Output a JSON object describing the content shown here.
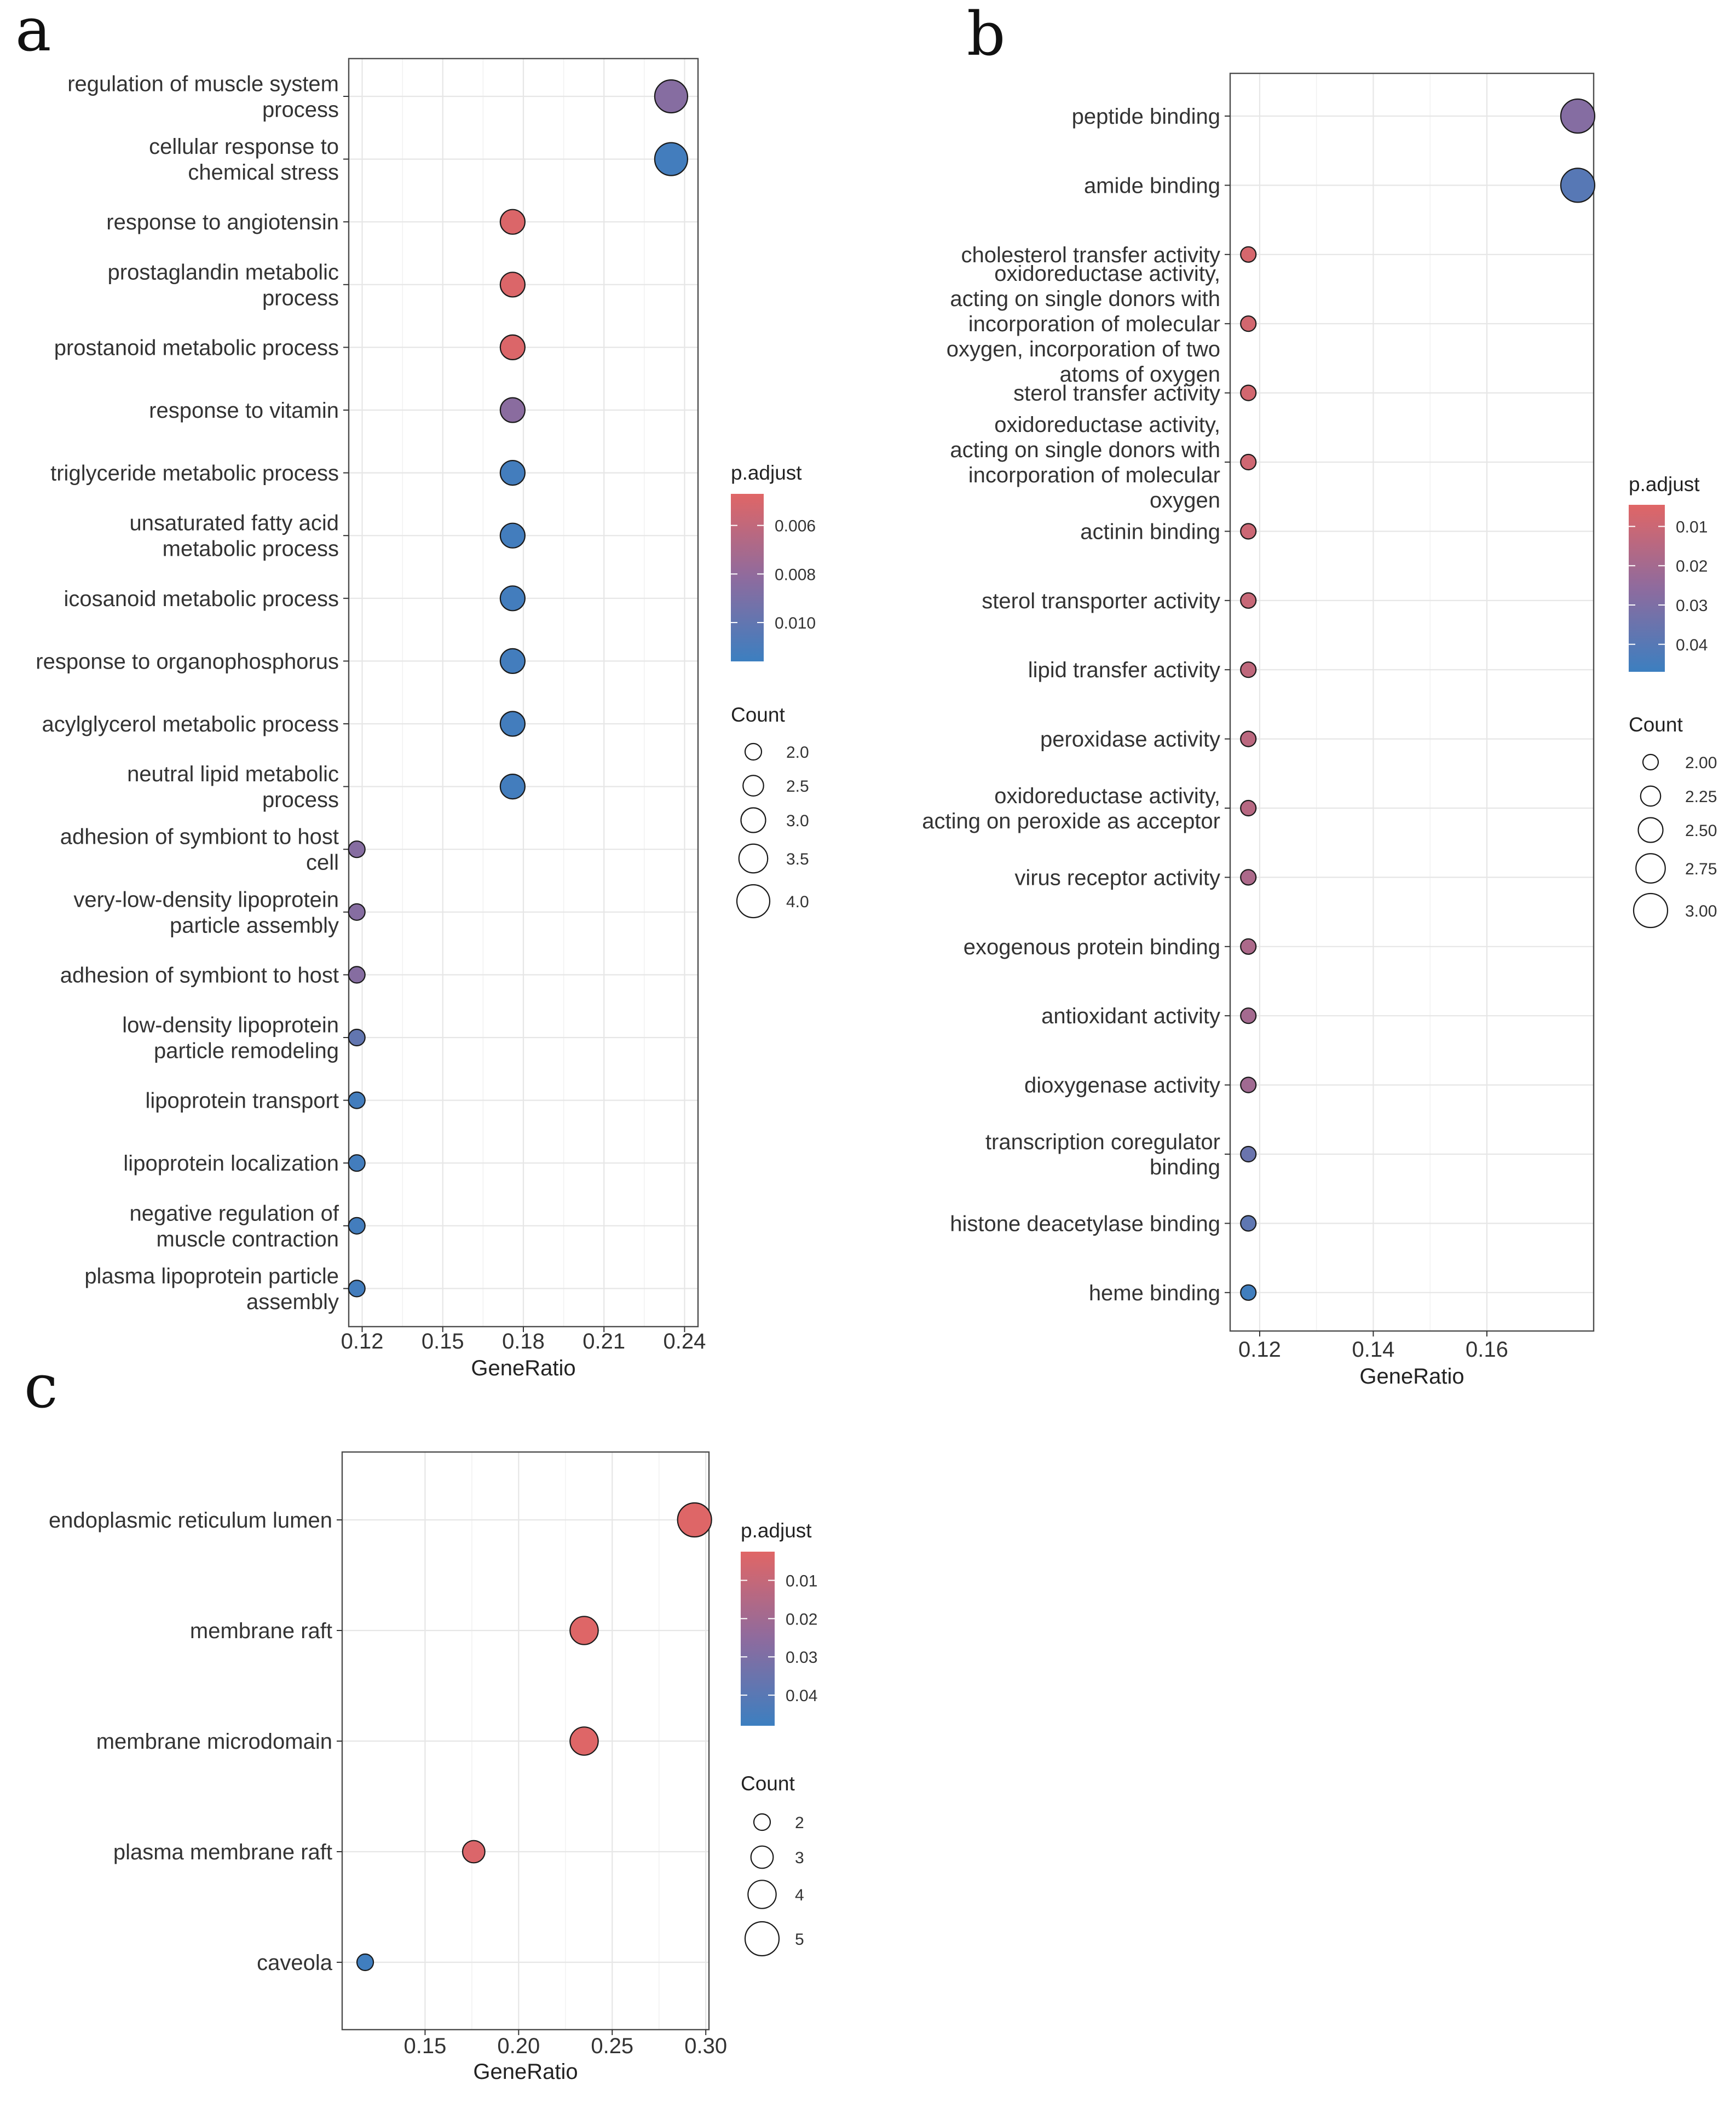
{
  "figure": {
    "colors": {
      "low_p": "#E06666",
      "mid_p": "#8E6B9E",
      "high_p": "#3C7FC0"
    }
  },
  "chart_data": [
    {
      "panel": "a",
      "type": "scatter",
      "xlabel": "GeneRatio",
      "ylabel": "",
      "xlim": [
        0.115,
        0.245
      ],
      "xticks": [
        0.12,
        0.15,
        0.18,
        0.21,
        0.24
      ],
      "xtick_labels": [
        "0.12",
        "0.15",
        "0.18",
        "0.21",
        "0.24"
      ],
      "legend_color_title": "p.adjust",
      "color_range": [
        0.0047,
        0.0116
      ],
      "color_ticks": [
        0.006,
        0.008,
        0.01
      ],
      "color_tick_labels": [
        "0.006",
        "0.008",
        "0.010"
      ],
      "legend_size_title": "Count",
      "size_range": [
        2,
        4
      ],
      "size_ticks": [
        2.0,
        2.5,
        3.0,
        3.5,
        4.0
      ],
      "size_tick_labels": [
        "2.0",
        "2.5",
        "3.0",
        "3.5",
        "4.0"
      ],
      "points": [
        {
          "term": [
            "regulation of muscle system",
            "process"
          ],
          "x": 0.235,
          "count": 4,
          "p": 0.0085
        },
        {
          "term": [
            "cellular response to",
            "chemical stress"
          ],
          "x": 0.235,
          "count": 4,
          "p": 0.0113
        },
        {
          "term": [
            "response to angiotensin"
          ],
          "x": 0.176,
          "count": 3,
          "p": 0.0049
        },
        {
          "term": [
            "prostaglandin metabolic",
            "process"
          ],
          "x": 0.176,
          "count": 3,
          "p": 0.0049
        },
        {
          "term": [
            "prostanoid metabolic process"
          ],
          "x": 0.176,
          "count": 3,
          "p": 0.0049
        },
        {
          "term": [
            "response to vitamin"
          ],
          "x": 0.176,
          "count": 3,
          "p": 0.0083
        },
        {
          "term": [
            "triglyceride metabolic process"
          ],
          "x": 0.176,
          "count": 3,
          "p": 0.0113
        },
        {
          "term": [
            "unsaturated fatty acid",
            "metabolic process"
          ],
          "x": 0.176,
          "count": 3,
          "p": 0.0113
        },
        {
          "term": [
            "icosanoid metabolic process"
          ],
          "x": 0.176,
          "count": 3,
          "p": 0.0113
        },
        {
          "term": [
            "response to organophosphorus"
          ],
          "x": 0.176,
          "count": 3,
          "p": 0.0113
        },
        {
          "term": [
            "acylglycerol metabolic process"
          ],
          "x": 0.176,
          "count": 3,
          "p": 0.0113
        },
        {
          "term": [
            "neutral lipid metabolic",
            "process"
          ],
          "x": 0.176,
          "count": 3,
          "p": 0.0113
        },
        {
          "term": [
            "adhesion of symbiont to host",
            "cell"
          ],
          "x": 0.118,
          "count": 2,
          "p": 0.0085
        },
        {
          "term": [
            "very-low-density lipoprotein",
            "particle assembly"
          ],
          "x": 0.118,
          "count": 2,
          "p": 0.0085
        },
        {
          "term": [
            "adhesion of symbiont to host"
          ],
          "x": 0.118,
          "count": 2,
          "p": 0.0085
        },
        {
          "term": [
            "low-density lipoprotein",
            "particle remodeling"
          ],
          "x": 0.118,
          "count": 2,
          "p": 0.01
        },
        {
          "term": [
            "lipoprotein transport"
          ],
          "x": 0.118,
          "count": 2,
          "p": 0.0113
        },
        {
          "term": [
            "lipoprotein localization"
          ],
          "x": 0.118,
          "count": 2,
          "p": 0.0113
        },
        {
          "term": [
            "negative regulation of",
            "muscle contraction"
          ],
          "x": 0.118,
          "count": 2,
          "p": 0.0113
        },
        {
          "term": [
            "plasma lipoprotein particle",
            "assembly"
          ],
          "x": 0.118,
          "count": 2,
          "p": 0.0113
        }
      ]
    },
    {
      "panel": "b",
      "type": "scatter",
      "xlabel": "GeneRatio",
      "ylabel": "",
      "xlim": [
        0.1148,
        0.1788
      ],
      "xticks": [
        0.12,
        0.14,
        0.16
      ],
      "xtick_labels": [
        "0.12",
        "0.14",
        "0.16"
      ],
      "legend_color_title": "p.adjust",
      "color_range": [
        0.0045,
        0.047
      ],
      "color_ticks": [
        0.01,
        0.02,
        0.03,
        0.04
      ],
      "color_tick_labels": [
        "0.01",
        "0.02",
        "0.03",
        "0.04"
      ],
      "legend_size_title": "Count",
      "size_range": [
        2,
        3
      ],
      "size_ticks": [
        2.0,
        2.25,
        2.5,
        2.75,
        3.0
      ],
      "size_tick_labels": [
        "2.00",
        "2.25",
        "2.50",
        "2.75",
        "3.00"
      ],
      "points": [
        {
          "term": [
            "peptide binding"
          ],
          "x": 0.176,
          "count": 3,
          "p": 0.028
        },
        {
          "term": [
            "amide binding"
          ],
          "x": 0.176,
          "count": 3,
          "p": 0.04
        },
        {
          "term": [
            "cholesterol transfer activity"
          ],
          "x": 0.118,
          "count": 2,
          "p": 0.007
        },
        {
          "term": [
            "oxidoreductase activity,",
            "acting on single donors with",
            "incorporation of molecular",
            "oxygen, incorporation of two",
            "atoms of oxygen"
          ],
          "x": 0.118,
          "count": 2,
          "p": 0.008
        },
        {
          "term": [
            "sterol transfer activity"
          ],
          "x": 0.118,
          "count": 2,
          "p": 0.008
        },
        {
          "term": [
            "oxidoreductase activity,",
            "acting on single donors with",
            "incorporation of molecular",
            "oxygen"
          ],
          "x": 0.118,
          "count": 2,
          "p": 0.009
        },
        {
          "term": [
            "actinin binding"
          ],
          "x": 0.118,
          "count": 2,
          "p": 0.01
        },
        {
          "term": [
            "sterol transporter activity"
          ],
          "x": 0.118,
          "count": 2,
          "p": 0.011
        },
        {
          "term": [
            "lipid transfer activity"
          ],
          "x": 0.118,
          "count": 2,
          "p": 0.013
        },
        {
          "term": [
            "peroxidase activity"
          ],
          "x": 0.118,
          "count": 2,
          "p": 0.014
        },
        {
          "term": [
            "oxidoreductase activity,",
            "acting on peroxide as acceptor"
          ],
          "x": 0.118,
          "count": 2,
          "p": 0.015
        },
        {
          "term": [
            "virus receptor activity"
          ],
          "x": 0.118,
          "count": 2,
          "p": 0.018
        },
        {
          "term": [
            "exogenous protein binding"
          ],
          "x": 0.118,
          "count": 2,
          "p": 0.018
        },
        {
          "term": [
            "antioxidant activity"
          ],
          "x": 0.118,
          "count": 2,
          "p": 0.02
        },
        {
          "term": [
            "dioxygenase activity"
          ],
          "x": 0.118,
          "count": 2,
          "p": 0.021
        },
        {
          "term": [
            "transcription coregulator",
            "binding"
          ],
          "x": 0.118,
          "count": 2,
          "p": 0.035
        },
        {
          "term": [
            "histone deacetylase binding"
          ],
          "x": 0.118,
          "count": 2,
          "p": 0.038
        },
        {
          "term": [
            "heme binding"
          ],
          "x": 0.118,
          "count": 2,
          "p": 0.046
        }
      ]
    },
    {
      "panel": "c",
      "type": "scatter",
      "xlabel": "GeneRatio",
      "ylabel": "",
      "xlim": [
        0.1057,
        0.3017
      ],
      "xticks": [
        0.15,
        0.2,
        0.25,
        0.3
      ],
      "xtick_labels": [
        "0.15",
        "0.20",
        "0.25",
        "0.30"
      ],
      "legend_color_title": "p.adjust",
      "color_range": [
        0.0025,
        0.048
      ],
      "color_ticks": [
        0.01,
        0.02,
        0.03,
        0.04
      ],
      "color_tick_labels": [
        "0.01",
        "0.02",
        "0.03",
        "0.04"
      ],
      "legend_size_title": "Count",
      "size_range": [
        2,
        5
      ],
      "size_ticks": [
        2,
        3,
        4,
        5
      ],
      "size_tick_labels": [
        "2",
        "3",
        "4",
        "5"
      ],
      "points": [
        {
          "term": [
            "endoplasmic reticulum lumen"
          ],
          "x": 0.294,
          "count": 5,
          "p": 0.003
        },
        {
          "term": [
            "membrane raft"
          ],
          "x": 0.235,
          "count": 4,
          "p": 0.003
        },
        {
          "term": [
            "membrane microdomain"
          ],
          "x": 0.235,
          "count": 4,
          "p": 0.003
        },
        {
          "term": [
            "plasma membrane raft"
          ],
          "x": 0.176,
          "count": 3,
          "p": 0.004
        },
        {
          "term": [
            "caveola"
          ],
          "x": 0.118,
          "count": 2,
          "p": 0.047
        }
      ]
    }
  ]
}
